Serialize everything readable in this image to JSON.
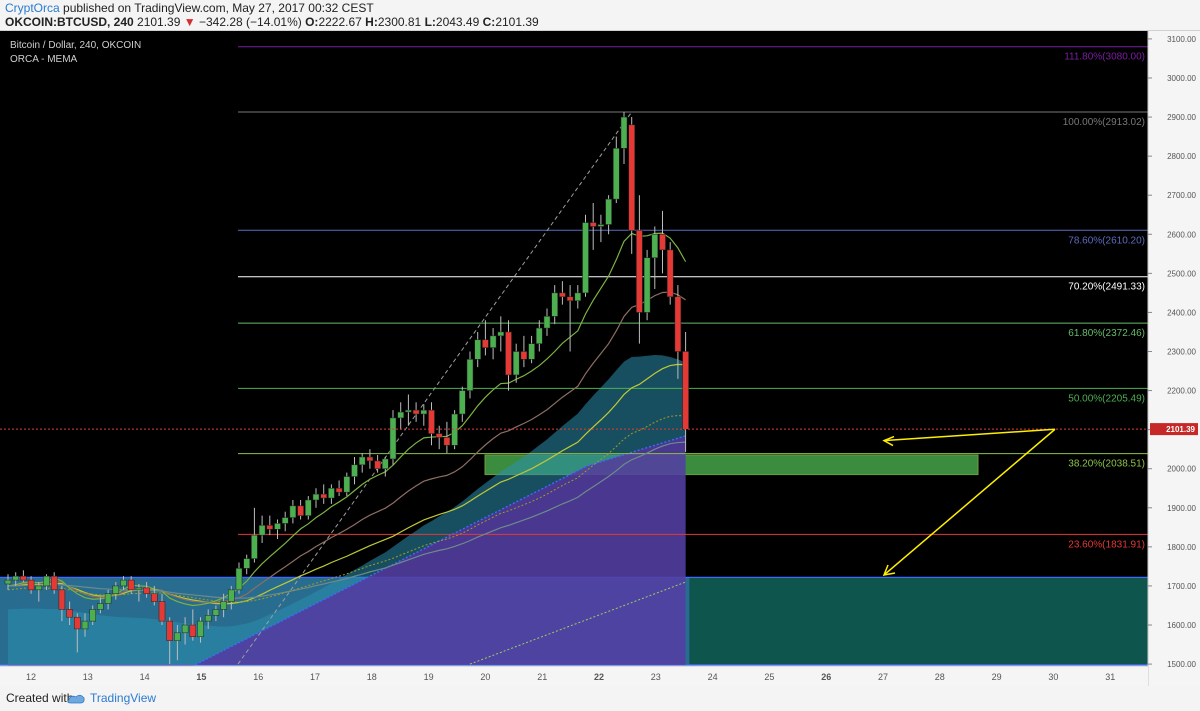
{
  "header": {
    "author": "CryptOrca",
    "published": "published on TradingView.com, May 27, 2017 00:32 CEST",
    "symbol": "OKCOIN:BTCUSD, 240",
    "last": "2101.39",
    "arrow": "▼",
    "change": "−342.28 (−14.01%)",
    "o_label": "O:",
    "o_value": "2222.67",
    "h_label": "H:",
    "h_value": "2300.81",
    "l_label": "L:",
    "l_value": "2043.49",
    "c_label": "C:",
    "c_value": "2101.39"
  },
  "legend": {
    "title": "Bitcoin / Dollar, 240, OKCOIN",
    "indicator": "ORCA - MEMA"
  },
  "footer": {
    "created": "Created with",
    "brand": "TradingView"
  },
  "chart_data": {
    "type": "candlestick",
    "ylim": [
      1490,
      3110
    ],
    "price_axis_ticks": [
      1500,
      1600,
      1700,
      1800,
      1900,
      2000,
      2100,
      2200,
      2300,
      2400,
      2500,
      2600,
      2700,
      2800,
      2900,
      3000,
      3100
    ],
    "price_axis_labels": [
      "1500.00",
      "1600.00",
      "1700.00",
      "1800.00",
      "1900.00",
      "2000.00",
      "2100.00",
      "2200.00",
      "2300.00",
      "2400.00",
      "2500.00",
      "2600.00",
      "2700.00",
      "2800.00",
      "2900.00",
      "3000.00",
      "3100.00"
    ],
    "x_labels": [
      "12",
      "13",
      "14",
      "15",
      "16",
      "17",
      "18",
      "19",
      "20",
      "21",
      "22",
      "23",
      "24",
      "25",
      "26",
      "27",
      "28",
      "29",
      "30",
      "31"
    ],
    "current_price": "2101.39",
    "colors": {
      "up": "#4caf50",
      "down": "#e53935",
      "background": "#000000"
    },
    "fib_levels": [
      {
        "label": "111.80%(3080.00)",
        "price": 3080.0,
        "color": "#7b1fa2"
      },
      {
        "label": "100.00%(2913.02)",
        "price": 2913.02,
        "color": "#787878"
      },
      {
        "label": "78.60%(2610.20)",
        "price": 2610.2,
        "color": "#5c6bc0"
      },
      {
        "label": "70.20%(2491.33)",
        "price": 2491.33,
        "color": "#ffffff"
      },
      {
        "label": "61.80%(2372.46)",
        "price": 2372.46,
        "color": "#66bb6a"
      },
      {
        "label": "50.00%(2205.49)",
        "price": 2205.49,
        "color": "#4caf50"
      },
      {
        "label": "38.20%(2038.51)",
        "price": 2038.51,
        "color": "#8bc34a"
      },
      {
        "label": "23.60%(1831.91)",
        "price": 1831.91,
        "color": "#e53935"
      }
    ],
    "support_zone": {
      "top": 2035,
      "bottom": 1985
    },
    "lower_zone": {
      "top": 1722,
      "bottom": 1498
    },
    "candles": [
      [
        1705,
        1730,
        1690,
        1715
      ],
      [
        1715,
        1735,
        1700,
        1725
      ],
      [
        1725,
        1740,
        1710,
        1715
      ],
      [
        1715,
        1725,
        1680,
        1690
      ],
      [
        1690,
        1710,
        1660,
        1700
      ],
      [
        1700,
        1730,
        1690,
        1725
      ],
      [
        1725,
        1735,
        1680,
        1690
      ],
      [
        1690,
        1700,
        1610,
        1640
      ],
      [
        1640,
        1660,
        1600,
        1620
      ],
      [
        1620,
        1630,
        1530,
        1590
      ],
      [
        1590,
        1630,
        1570,
        1610
      ],
      [
        1610,
        1650,
        1600,
        1640
      ],
      [
        1640,
        1670,
        1630,
        1655
      ],
      [
        1655,
        1690,
        1640,
        1680
      ],
      [
        1680,
        1710,
        1665,
        1700
      ],
      [
        1700,
        1725,
        1690,
        1715
      ],
      [
        1715,
        1725,
        1680,
        1690
      ],
      [
        1690,
        1705,
        1660,
        1695
      ],
      [
        1695,
        1710,
        1670,
        1680
      ],
      [
        1680,
        1700,
        1650,
        1660
      ],
      [
        1660,
        1680,
        1600,
        1610
      ],
      [
        1610,
        1620,
        1500,
        1560
      ],
      [
        1560,
        1600,
        1510,
        1580
      ],
      [
        1580,
        1620,
        1550,
        1600
      ],
      [
        1600,
        1640,
        1560,
        1570
      ],
      [
        1570,
        1620,
        1555,
        1610
      ],
      [
        1610,
        1640,
        1590,
        1625
      ],
      [
        1625,
        1650,
        1610,
        1640
      ],
      [
        1640,
        1680,
        1620,
        1660
      ],
      [
        1660,
        1700,
        1640,
        1690
      ],
      [
        1690,
        1760,
        1680,
        1745
      ],
      [
        1745,
        1780,
        1730,
        1770
      ],
      [
        1770,
        1900,
        1760,
        1830
      ],
      [
        1830,
        1880,
        1810,
        1855
      ],
      [
        1855,
        1880,
        1830,
        1845
      ],
      [
        1845,
        1870,
        1820,
        1860
      ],
      [
        1860,
        1890,
        1840,
        1875
      ],
      [
        1875,
        1920,
        1860,
        1905
      ],
      [
        1905,
        1920,
        1870,
        1880
      ],
      [
        1880,
        1930,
        1870,
        1920
      ],
      [
        1920,
        1950,
        1900,
        1935
      ],
      [
        1935,
        1960,
        1910,
        1925
      ],
      [
        1925,
        1960,
        1910,
        1950
      ],
      [
        1950,
        1970,
        1930,
        1940
      ],
      [
        1940,
        1990,
        1930,
        1980
      ],
      [
        1980,
        2030,
        1960,
        2010
      ],
      [
        2010,
        2040,
        1990,
        2030
      ],
      [
        2030,
        2050,
        2000,
        2020
      ],
      [
        2020,
        2035,
        1990,
        2000
      ],
      [
        2000,
        2030,
        1980,
        2025
      ],
      [
        2025,
        2150,
        2010,
        2130
      ],
      [
        2130,
        2170,
        2100,
        2145
      ],
      [
        2145,
        2190,
        2110,
        2150
      ],
      [
        2150,
        2170,
        2120,
        2140
      ],
      [
        2140,
        2165,
        2110,
        2150
      ],
      [
        2150,
        2170,
        2060,
        2090
      ],
      [
        2090,
        2110,
        2050,
        2080
      ],
      [
        2080,
        2120,
        2040,
        2060
      ],
      [
        2060,
        2150,
        2050,
        2140
      ],
      [
        2140,
        2210,
        2120,
        2200
      ],
      [
        2200,
        2300,
        2180,
        2280
      ],
      [
        2280,
        2350,
        2260,
        2330
      ],
      [
        2330,
        2380,
        2290,
        2310
      ],
      [
        2310,
        2360,
        2280,
        2340
      ],
      [
        2340,
        2390,
        2300,
        2350
      ],
      [
        2350,
        2380,
        2200,
        2240
      ],
      [
        2240,
        2320,
        2220,
        2300
      ],
      [
        2300,
        2340,
        2260,
        2280
      ],
      [
        2280,
        2340,
        2270,
        2320
      ],
      [
        2320,
        2380,
        2300,
        2360
      ],
      [
        2360,
        2410,
        2340,
        2390
      ],
      [
        2390,
        2470,
        2370,
        2450
      ],
      [
        2450,
        2480,
        2420,
        2440
      ],
      [
        2440,
        2470,
        2300,
        2430
      ],
      [
        2430,
        2470,
        2410,
        2450
      ],
      [
        2450,
        2650,
        2440,
        2630
      ],
      [
        2630,
        2680,
        2560,
        2620
      ],
      [
        2620,
        2650,
        2580,
        2625
      ],
      [
        2625,
        2700,
        2600,
        2690
      ],
      [
        2690,
        2850,
        2680,
        2820
      ],
      [
        2820,
        2913,
        2780,
        2900
      ],
      [
        2880,
        2900,
        2550,
        2610
      ],
      [
        2610,
        2700,
        2320,
        2400
      ],
      [
        2400,
        2560,
        2380,
        2540
      ],
      [
        2540,
        2620,
        2460,
        2600
      ],
      [
        2600,
        2660,
        2500,
        2560
      ],
      [
        2560,
        2580,
        2420,
        2440
      ],
      [
        2440,
        2470,
        2230,
        2300
      ],
      [
        2300,
        2350,
        2043,
        2101
      ]
    ],
    "ma_curves": [
      {
        "color": "#c0ca33",
        "values": [
          1700,
          1701,
          1703,
          1704,
          1703,
          1703,
          1707,
          1706,
          1697,
          1691,
          1683,
          1677,
          1674,
          1674,
          1676,
          1681,
          1688,
          1689,
          1690,
          1689,
          1687,
          1679,
          1673,
          1668,
          1664,
          1661,
          1658,
          1655,
          1654,
          1655,
          1658,
          1662,
          1670,
          1679,
          1689,
          1698,
          1707,
          1716,
          1726,
          1734,
          1743,
          1751,
          1760,
          1768,
          1776,
          1785,
          1794,
          1803,
          1811,
          1819,
          1827,
          1838,
          1849,
          1859,
          1869,
          1876,
          1883,
          1889,
          1896,
          1905,
          1917,
          1930,
          1942,
          1954,
          1966,
          1973,
          1982,
          1991,
          2000,
          2011,
          2022,
          2034,
          2046,
          2057,
          2068,
          2088,
          2107,
          2125,
          2144,
          2166,
          2190,
          2207,
          2216,
          2230,
          2244,
          2256,
          2264,
          2267,
          2266
        ]
      },
      {
        "color": "#8d6e63",
        "values": [
          1700,
          1702,
          1706,
          1708,
          1707,
          1708,
          1713,
          1710,
          1697,
          1688,
          1679,
          1673,
          1671,
          1672,
          1677,
          1684,
          1693,
          1694,
          1695,
          1692,
          1689,
          1678,
          1671,
          1665,
          1661,
          1659,
          1658,
          1658,
          1660,
          1664,
          1670,
          1679,
          1694,
          1708,
          1722,
          1736,
          1749,
          1763,
          1777,
          1788,
          1801,
          1812,
          1824,
          1834,
          1845,
          1857,
          1870,
          1881,
          1890,
          1899,
          1912,
          1928,
          1943,
          1956,
          1968,
          1974,
          1979,
          1983,
          1992,
          2005,
          2023,
          2043,
          2061,
          2077,
          2091,
          2097,
          2107,
          2116,
          2126,
          2138,
          2151,
          2167,
          2183,
          2197,
          2211,
          2243,
          2270,
          2295,
          2320,
          2353,
          2390,
          2413,
          2420,
          2431,
          2443,
          2451,
          2452,
          2445,
          2432
        ]
      },
      {
        "color": "#7cb342",
        "values": [
          1700,
          1703,
          1709,
          1710,
          1708,
          1711,
          1720,
          1713,
          1694,
          1680,
          1670,
          1666,
          1667,
          1670,
          1679,
          1691,
          1702,
          1700,
          1699,
          1692,
          1686,
          1669,
          1660,
          1654,
          1650,
          1652,
          1656,
          1662,
          1670,
          1681,
          1695,
          1712,
          1736,
          1757,
          1775,
          1792,
          1809,
          1828,
          1846,
          1859,
          1875,
          1888,
          1903,
          1915,
          1928,
          1944,
          1960,
          1973,
          1983,
          1992,
          2009,
          2030,
          2050,
          2066,
          2079,
          2081,
          2082,
          2083,
          2093,
          2110,
          2135,
          2161,
          2183,
          2202,
          2218,
          2219,
          2229,
          2238,
          2250,
          2264,
          2281,
          2300,
          2321,
          2337,
          2353,
          2396,
          2431,
          2462,
          2493,
          2535,
          2582,
          2602,
          2595,
          2596,
          2602,
          2603,
          2590,
          2565,
          2530
        ]
      },
      {
        "color": "#6d8b8b",
        "values": [
          1700,
          1700,
          1701,
          1702,
          1702,
          1702,
          1703,
          1703,
          1701,
          1699,
          1697,
          1695,
          1693,
          1692,
          1691,
          1690,
          1690,
          1689,
          1689,
          1688,
          1687,
          1684,
          1681,
          1679,
          1677,
          1675,
          1673,
          1671,
          1670,
          1669,
          1669,
          1669,
          1671,
          1674,
          1677,
          1680,
          1684,
          1688,
          1692,
          1696,
          1701,
          1705,
          1710,
          1714,
          1719,
          1725,
          1730,
          1736,
          1741,
          1746,
          1753,
          1760,
          1767,
          1774,
          1781,
          1786,
          1791,
          1795,
          1801,
          1808,
          1816,
          1825,
          1833,
          1841,
          1849,
          1855,
          1862,
          1869,
          1876,
          1884,
          1892,
          1901,
          1910,
          1918,
          1927,
          1941,
          1954,
          1967,
          1980,
          1995,
          2011,
          2023,
          2031,
          2040,
          2050,
          2058,
          2064,
          2067,
          2068
        ]
      }
    ],
    "zigzag_curve": {
      "color": "#9e9d24",
      "values": [
        1690,
        1692,
        1694,
        1695,
        1695,
        1694,
        1695,
        1694,
        1690,
        1686,
        1682,
        1679,
        1677,
        1677,
        1677,
        1678,
        1680,
        1681,
        1682,
        1682,
        1682,
        1679,
        1676,
        1673,
        1670,
        1667,
        1664,
        1662,
        1660,
        1659,
        1659,
        1660,
        1663,
        1667,
        1672,
        1677,
        1683,
        1689,
        1695,
        1701,
        1707,
        1713,
        1719,
        1725,
        1731,
        1738,
        1745,
        1752,
        1758,
        1764,
        1771,
        1779,
        1787,
        1795,
        1803,
        1809,
        1815,
        1820,
        1827,
        1835,
        1845,
        1856,
        1866,
        1876,
        1886,
        1892,
        1900,
        1908,
        1916,
        1925,
        1935,
        1946,
        1957,
        1967,
        1977,
        1993,
        2009,
        2024,
        2039,
        2057,
        2076,
        2090,
        2098,
        2108,
        2119,
        2128,
        2134,
        2136,
        2135
      ]
    },
    "cloud_top": [
      1640,
      1641,
      1642,
      1642,
      1642,
      1641,
      1641,
      1640,
      1637,
      1634,
      1631,
      1628,
      1625,
      1623,
      1621,
      1620,
      1619,
      1618,
      1617,
      1615,
      1613,
      1610,
      1607,
      1604,
      1602,
      1600,
      1598,
      1597,
      1596,
      1597,
      1600,
      1604,
      1610,
      1618,
      1627,
      1636,
      1645,
      1655,
      1665,
      1675,
      1685,
      1696,
      1707,
      1718,
      1729,
      1741,
      1752,
      1764,
      1775,
      1786,
      1800,
      1814,
      1828,
      1841,
      1855,
      1866,
      1878,
      1889,
      1902,
      1916,
      1932,
      1948,
      1963,
      1978,
      1993,
      2005,
      2018,
      2031,
      2045,
      2060,
      2075,
      2092,
      2109,
      2125,
      2141,
      2165,
      2187,
      2208,
      2229,
      2252,
      2274,
      2286,
      2287,
      2289,
      2291,
      2290,
      2286,
      2280,
      2272
    ],
    "purple_top": [
      1490,
      1490,
      1490,
      1490,
      1490,
      1490,
      1490,
      1490,
      1490,
      1490,
      1490,
      1490,
      1490,
      1490,
      1490,
      1490,
      1490,
      1490,
      1490,
      1490,
      1490,
      1490,
      1490,
      1490,
      1495,
      1505,
      1515,
      1525,
      1535,
      1545,
      1555,
      1565,
      1575,
      1585,
      1595,
      1605,
      1615,
      1625,
      1635,
      1645,
      1655,
      1665,
      1675,
      1685,
      1695,
      1705,
      1715,
      1725,
      1735,
      1745,
      1755,
      1765,
      1775,
      1785,
      1795,
      1805,
      1815,
      1825,
      1835,
      1845,
      1855,
      1865,
      1875,
      1885,
      1895,
      1905,
      1915,
      1925,
      1935,
      1945,
      1955,
      1965,
      1975,
      1985,
      1995,
      2005,
      2012,
      2018,
      2024,
      2030,
      2036,
      2042,
      2048,
      2054,
      2060,
      2066,
      2072,
      2078,
      2084
    ]
  }
}
